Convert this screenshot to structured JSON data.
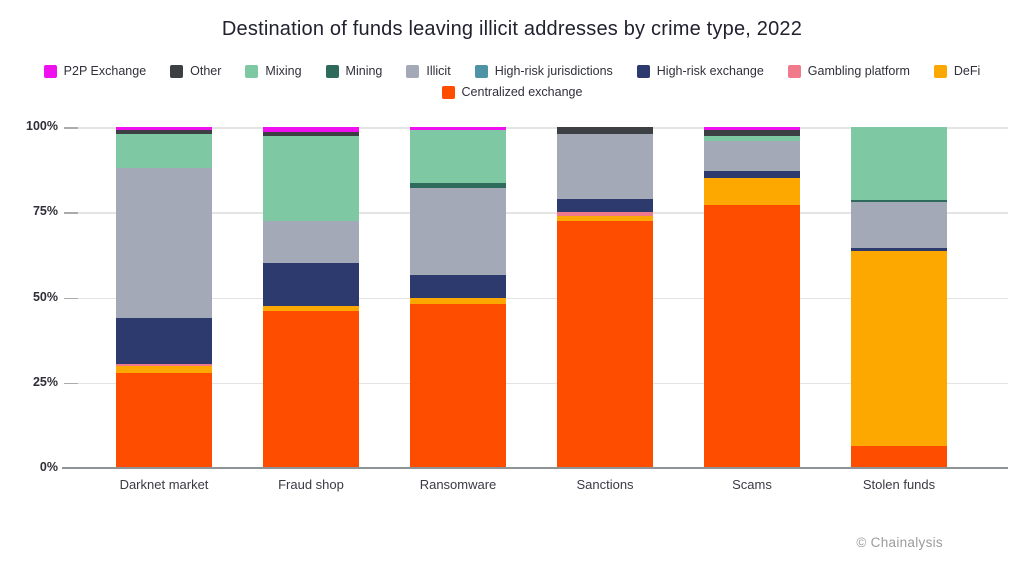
{
  "title": "Destination of funds leaving illicit addresses by crime type, 2022",
  "watermark": "© Chainalysis",
  "colors": {
    "p2p-exchange": "#EE10EE",
    "other": "#3C4043",
    "mixing": "#7FC8A4",
    "mining": "#2E6B5C",
    "illicit": "#A3A9B7",
    "high-risk-jurisdictions": "#4E93A6",
    "high-risk-exchange": "#2C3A6D",
    "gambling-platform": "#F0798C",
    "defi": "#FCA800",
    "centralized-exchange": "#FF4D00"
  },
  "legend": {
    "rows": [
      [
        {
          "key": "p2p-exchange",
          "label": "P2P Exchange"
        },
        {
          "key": "other",
          "label": "Other"
        },
        {
          "key": "mixing",
          "label": "Mixing"
        },
        {
          "key": "mining",
          "label": "Mining"
        },
        {
          "key": "illicit",
          "label": "Illicit"
        },
        {
          "key": "high-risk-jurisdictions",
          "label": "High-risk jurisdictions"
        },
        {
          "key": "high-risk-exchange",
          "label": "High-risk exchange"
        },
        {
          "key": "gambling-platform",
          "label": "Gambling platform"
        },
        {
          "key": "defi",
          "label": "DeFi"
        }
      ],
      [
        {
          "key": "centralized-exchange",
          "label": "Centralized exchange"
        }
      ]
    ]
  },
  "y_axis": {
    "ticks": [
      "100%",
      "75%",
      "50%",
      "25%",
      "0%"
    ],
    "min": 0,
    "max": 100
  },
  "chart_data": {
    "type": "bar",
    "stacked": true,
    "unit": "percent",
    "title": "Destination of funds leaving illicit addresses by crime type, 2022",
    "xlabel": "",
    "ylabel": "",
    "ylim": [
      0,
      100
    ],
    "grid": true,
    "legend_position": "top",
    "categories": [
      "Darknet market",
      "Fraud shop",
      "Ransomware",
      "Sanctions",
      "Scams",
      "Stolen funds"
    ],
    "series_order_note": "bottom of stack to top of stack",
    "series": [
      {
        "key": "centralized-exchange",
        "name": "Centralized exchange",
        "values": [
          28,
          46,
          48,
          72.5,
          77,
          6.5
        ]
      },
      {
        "key": "defi",
        "name": "DeFi",
        "values": [
          2,
          1.5,
          2,
          1.5,
          8,
          57
        ]
      },
      {
        "key": "gambling-platform",
        "name": "Gambling platform",
        "values": [
          0.5,
          0,
          0,
          1,
          0,
          0
        ]
      },
      {
        "key": "high-risk-exchange",
        "name": "High-risk exchange",
        "values": [
          13.5,
          12.5,
          6.5,
          4,
          2,
          1
        ]
      },
      {
        "key": "high-risk-jurisdictions",
        "name": "High-risk jurisdictions",
        "values": [
          0,
          0,
          0,
          0,
          0,
          0
        ]
      },
      {
        "key": "illicit",
        "name": "Illicit",
        "values": [
          44,
          12.5,
          25.5,
          19,
          9,
          13.5
        ]
      },
      {
        "key": "mining",
        "name": "Mining",
        "values": [
          0,
          0,
          1.5,
          0,
          0,
          0.5
        ]
      },
      {
        "key": "mixing",
        "name": "Mixing",
        "values": [
          10,
          25,
          15.5,
          0,
          1.5,
          21.5
        ]
      },
      {
        "key": "other",
        "name": "Other",
        "values": [
          1,
          1,
          0,
          2,
          1.5,
          0
        ]
      },
      {
        "key": "p2p-exchange",
        "name": "P2P Exchange",
        "values": [
          1,
          1.5,
          1,
          0,
          1,
          0
        ]
      }
    ]
  }
}
